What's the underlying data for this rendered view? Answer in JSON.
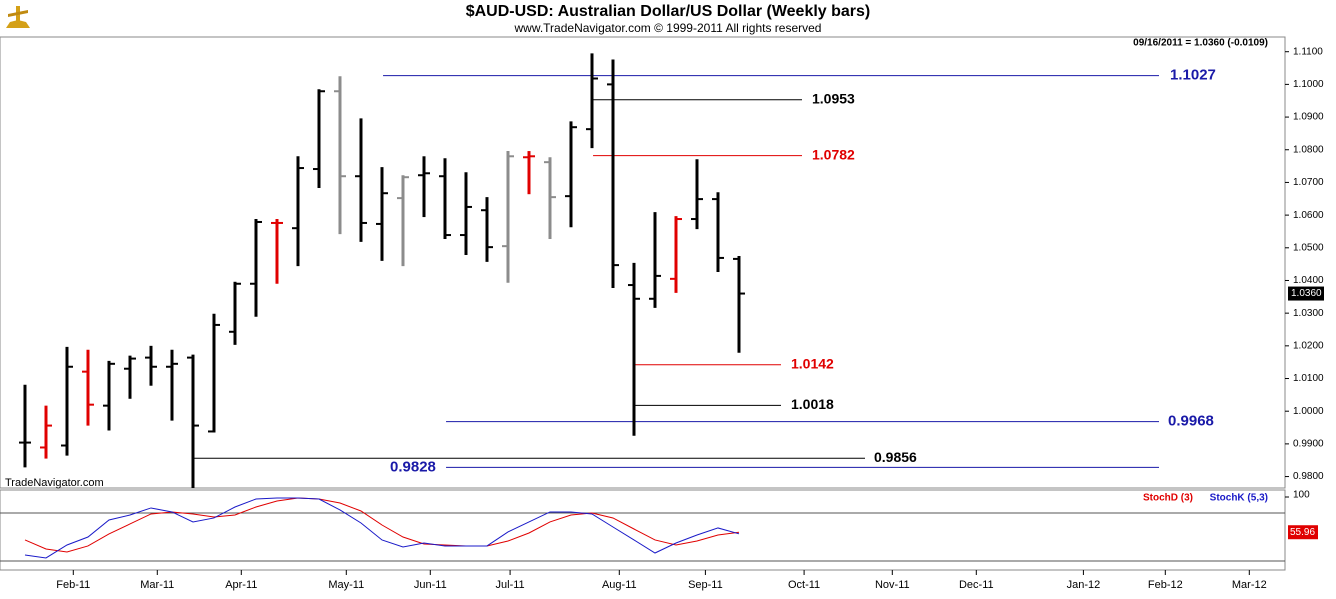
{
  "chart_data": {
    "type": "ohlc",
    "title": "$AUD-USD:  Australian Dollar/US Dollar  (Weekly bars)",
    "subtitle": "www.TradeNavigator.com © 1999-2011 All rights reserved",
    "info": "09/16/2011 = 1.0360 (-0.0109)",
    "watermark": "TradeNavigator.com",
    "last_price": {
      "value": 1.036,
      "label": "1.0360"
    },
    "categories": [
      null,
      null,
      null,
      null,
      null,
      null,
      null,
      null,
      null,
      null,
      null,
      null,
      null,
      null,
      null,
      null,
      null,
      null,
      null,
      null,
      null,
      null,
      null,
      null,
      null,
      null,
      null,
      null,
      null,
      null,
      null,
      null,
      null,
      null,
      null
    ],
    "open": [
      0.9904,
      0.9889,
      0.9895,
      1.0121,
      1.0017,
      1.013,
      1.0164,
      1.0136,
      1.0164,
      0.9938,
      1.0243,
      1.039,
      1.0576,
      1.056,
      1.0741,
      1.0979,
      1.0719,
      1.0573,
      1.0652,
      1.0722,
      1.0719,
      1.0539,
      1.0615,
      1.0505,
      1.0777,
      1.0762,
      1.0658,
      1.0863,
      1.1,
      1.0386,
      1.0344,
      1.0405,
      1.0588,
      1.0649,
      1.0466
    ],
    "high": [
      1.0081,
      1.0017,
      1.0197,
      1.0188,
      1.0154,
      1.017,
      1.02,
      1.0188,
      1.0173,
      1.0298,
      1.0396,
      1.0588,
      1.0588,
      1.078,
      1.0985,
      1.1025,
      1.0896,
      1.0747,
      1.0722,
      1.078,
      1.0774,
      1.0731,
      1.0655,
      1.0796,
      1.0796,
      1.0777,
      1.0887,
      1.1095,
      1.1076,
      1.0454,
      1.0609,
      1.0597,
      1.0771,
      1.067,
      1.0475
    ],
    "low": [
      0.9828,
      0.9855,
      0.9864,
      0.9956,
      0.9941,
      1.0038,
      1.0078,
      0.9971,
      0.9758,
      0.9935,
      1.0203,
      1.0289,
      1.039,
      1.0444,
      1.0683,
      1.0542,
      1.0518,
      1.046,
      1.0444,
      1.0594,
      1.0527,
      1.0478,
      1.0457,
      1.0393,
      1.0664,
      1.0527,
      1.0563,
      1.0805,
      1.0377,
      0.9925,
      1.0316,
      1.0362,
      1.0557,
      1.0426,
      1.0179
    ],
    "close": [
      0.9904,
      0.9956,
      1.0136,
      1.002,
      1.0145,
      1.0161,
      1.0136,
      1.0145,
      0.9956,
      1.0264,
      1.039,
      1.0579,
      1.0576,
      1.0744,
      1.0979,
      1.0719,
      1.0576,
      1.0667,
      1.0716,
      1.0728,
      1.0539,
      1.0625,
      1.0502,
      1.078,
      1.078,
      1.0655,
      1.0869,
      1.1018,
      1.0447,
      1.0344,
      1.0414,
      1.0588,
      1.0649,
      1.0469,
      1.036
    ],
    "colors": [
      "#000000",
      "#e00000",
      "#000000",
      "#e00000",
      "#000000",
      "#000000",
      "#000000",
      "#000000",
      "#000000",
      "#000000",
      "#000000",
      "#000000",
      "#e00000",
      "#000000",
      "#000000",
      "#8c8c8c",
      "#000000",
      "#000000",
      "#8c8c8c",
      "#000000",
      "#000000",
      "#000000",
      "#000000",
      "#8c8c8c",
      "#e00000",
      "#8c8c8c",
      "#000000",
      "#000000",
      "#000000",
      "#000000",
      "#000000",
      "#e00000",
      "#000000",
      "#000000",
      "#000000"
    ],
    "levels": [
      {
        "value": 1.1027,
        "color": "#1a1aa8"
      },
      {
        "value": 1.0953,
        "color": "#000000"
      },
      {
        "value": 1.0782,
        "color": "#e00000"
      },
      {
        "value": 1.0142,
        "color": "#e00000"
      },
      {
        "value": 1.0018,
        "color": "#000000"
      },
      {
        "value": 0.9968,
        "color": "#1a1aa8"
      },
      {
        "value": 0.9856,
        "color": "#000000"
      },
      {
        "value": 0.9828,
        "color": "#1a1aa8"
      }
    ],
    "ylim": [
      0.9765,
      1.1145
    ],
    "yticks": [
      {
        "value": 0.98,
        "label": "0.9800"
      },
      {
        "value": 0.99,
        "label": "0.9900"
      },
      {
        "value": 1.0,
        "label": "1.0000"
      },
      {
        "value": 1.01,
        "label": "1.0100"
      },
      {
        "value": 1.02,
        "label": "1.0200"
      },
      {
        "value": 1.03,
        "label": "1.0300"
      },
      {
        "value": 1.04,
        "label": "1.0400"
      },
      {
        "value": 1.05,
        "label": "1.0500"
      },
      {
        "value": 1.06,
        "label": "1.0600"
      },
      {
        "value": 1.07,
        "label": "1.0700"
      },
      {
        "value": 1.08,
        "label": "1.0800"
      },
      {
        "value": 1.09,
        "label": "1.0900"
      },
      {
        "value": 1.1,
        "label": "1.1000"
      },
      {
        "value": 1.11,
        "label": "1.1100"
      }
    ],
    "xlim": [
      -1.19,
      60
    ],
    "xticks": [
      {
        "value": 2.3,
        "label": "Feb-11"
      },
      {
        "value": 6.3,
        "label": "Mar-11"
      },
      {
        "value": 10.3,
        "label": "Apr-11"
      },
      {
        "value": 15.3,
        "label": "May-11"
      },
      {
        "value": 19.3,
        "label": "Jun-11"
      },
      {
        "value": 23.1,
        "label": "Jul-11"
      },
      {
        "value": 28.3,
        "label": "Aug-11"
      },
      {
        "value": 32.4,
        "label": "Sep-11"
      },
      {
        "value": 37.1,
        "label": "Oct-11"
      },
      {
        "value": 41.3,
        "label": "Nov-11"
      },
      {
        "value": 45.3,
        "label": "Dec-11"
      },
      {
        "value": 50.4,
        "label": "Jan-12"
      },
      {
        "value": 54.3,
        "label": "Feb-12"
      },
      {
        "value": 58.3,
        "label": "Mar-12"
      }
    ],
    "stochastic": {
      "ylim": [
        0,
        100
      ],
      "yticks": [
        100
      ],
      "levels": [
        80,
        20
      ],
      "last_value": 55.96,
      "series": [
        {
          "name": "StochD (3)",
          "color": "#e00000",
          "values": [
            46.3,
            35,
            31.3,
            38.8,
            53.8,
            66.3,
            78.8,
            81.3,
            78.8,
            75,
            77.5,
            87.5,
            95,
            98.8,
            97.5,
            92.5,
            82.5,
            65,
            50,
            41.3,
            40,
            38.8,
            38.8,
            45,
            55,
            68.8,
            77.5,
            80,
            73.8,
            60,
            46.3,
            40,
            45,
            52.5,
            55.96
          ]
        },
        {
          "name": "StochK (5,3)",
          "color": "#1a1ac8",
          "values": [
            27.5,
            23.8,
            40,
            50,
            71.3,
            77.5,
            86.3,
            81.3,
            68.8,
            73.8,
            87.5,
            97.5,
            98.8,
            98.8,
            97.5,
            83.8,
            67.5,
            46.3,
            37.5,
            42.5,
            38.8,
            38.8,
            38.8,
            56.3,
            68.8,
            81.3,
            81.3,
            78.8,
            62.5,
            46.3,
            30,
            42.5,
            52.5,
            61.3,
            54
          ]
        }
      ]
    }
  }
}
